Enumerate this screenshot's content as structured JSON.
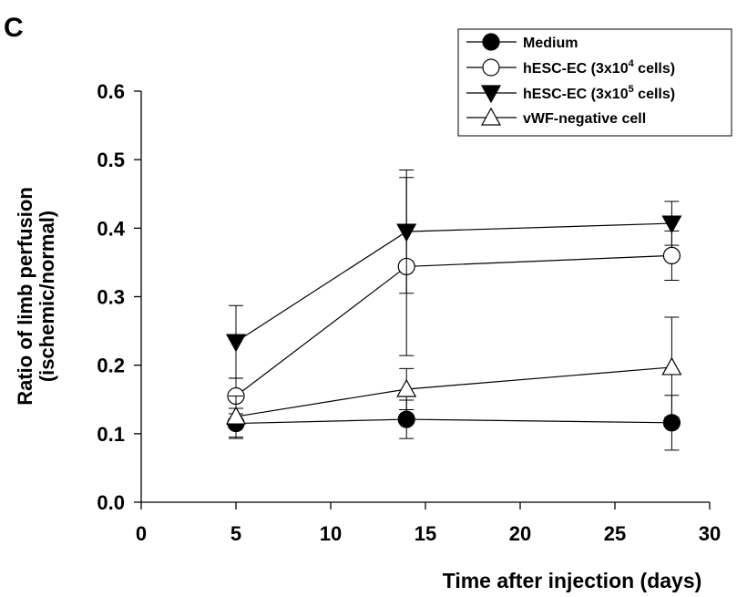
{
  "panel_label": "C",
  "chart_data": {
    "type": "line",
    "xlabel": "Time after injection (days)",
    "ylabel_line1": "Ratio of limb perfusion",
    "ylabel_line2": "(ischemic/normal)",
    "xlim": [
      0,
      30
    ],
    "ylim": [
      0.0,
      0.6
    ],
    "x_ticks": [
      0,
      5,
      10,
      15,
      20,
      25,
      30
    ],
    "y_ticks": [
      0.0,
      0.1,
      0.2,
      0.3,
      0.4,
      0.5,
      0.6
    ],
    "y_tick_labels": [
      "0.0",
      "0.1",
      "0.2",
      "0.3",
      "0.4",
      "0.5",
      "0.6"
    ],
    "grid": false,
    "legend_position": "top-right",
    "x": [
      5,
      14,
      28
    ],
    "series": [
      {
        "name": "Medium",
        "marker": "filled-circle",
        "values": [
          0.115,
          0.121,
          0.116
        ],
        "error": [
          0.022,
          0.028,
          0.04
        ]
      },
      {
        "name": "hESC-EC (3x10",
        "name_sup": "4",
        "name_suffix": " cells)",
        "marker": "open-circle",
        "values": [
          0.155,
          0.344,
          0.36
        ],
        "error": [
          0.026,
          0.13,
          0.036
        ]
      },
      {
        "name": "hESC-EC (3x10",
        "name_sup": "5",
        "name_suffix": " cells)",
        "marker": "filled-triangle-down",
        "values": [
          0.234,
          0.395,
          0.407
        ],
        "error": [
          0.053,
          0.09,
          0.032
        ]
      },
      {
        "name": "vWF-negative cell",
        "marker": "open-triangle-up",
        "values": [
          0.125,
          0.165,
          0.197
        ],
        "error": [
          0.03,
          0.03,
          0.073
        ]
      }
    ]
  }
}
